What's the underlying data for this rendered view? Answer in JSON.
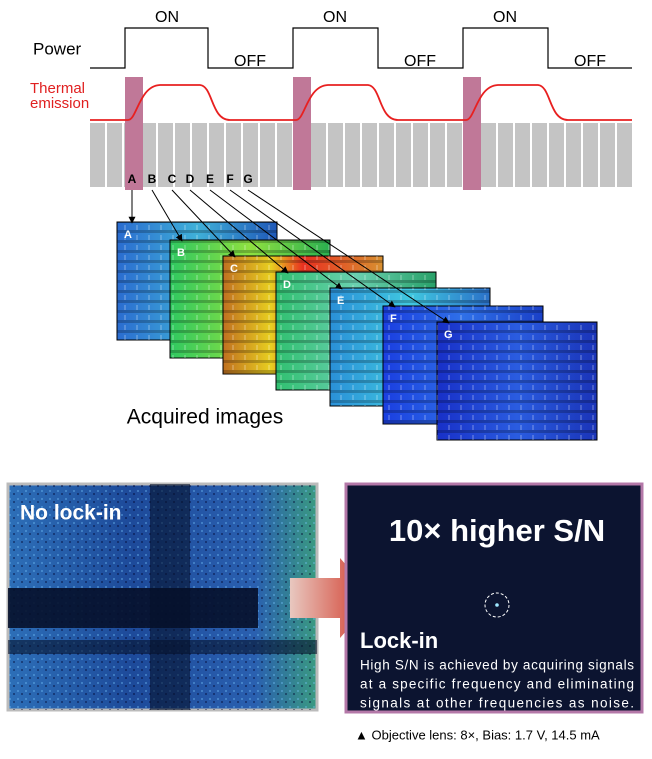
{
  "timing": {
    "power_label": "Power",
    "states": [
      "ON",
      "OFF",
      "ON",
      "OFF",
      "ON",
      "OFF"
    ],
    "thermal_label": [
      "Thermal",
      "emission"
    ],
    "frame_labels": [
      "A",
      "B",
      "C",
      "D",
      "E",
      "F",
      "G"
    ]
  },
  "acquired": {
    "frames": [
      "A",
      "B",
      "C",
      "D",
      "E",
      "F",
      "G"
    ],
    "caption": "Acquired images"
  },
  "comparison": {
    "left": {
      "label": "No lock-in"
    },
    "right": {
      "headline": "10× higher S/N",
      "label": "Lock-in",
      "description": [
        "High S/N is achieved by acquiring signals",
        "at a specific frequency and eliminating",
        "signals at other frequencies as noise."
      ]
    },
    "note": "▲ Objective lens: 8×, Bias: 1.7 V, 14.5 mA"
  }
}
